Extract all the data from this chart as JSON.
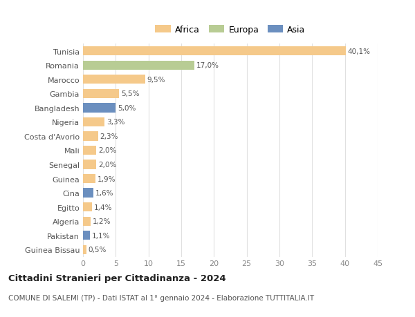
{
  "categories": [
    "Tunisia",
    "Romania",
    "Marocco",
    "Gambia",
    "Bangladesh",
    "Nigeria",
    "Costa d'Avorio",
    "Mali",
    "Senegal",
    "Guinea",
    "Cina",
    "Egitto",
    "Algeria",
    "Pakistan",
    "Guinea Bissau"
  ],
  "values": [
    40.1,
    17.0,
    9.5,
    5.5,
    5.0,
    3.3,
    2.3,
    2.0,
    2.0,
    1.9,
    1.6,
    1.4,
    1.2,
    1.1,
    0.5
  ],
  "labels": [
    "40,1%",
    "17,0%",
    "9,5%",
    "5,5%",
    "5,0%",
    "3,3%",
    "2,3%",
    "2,0%",
    "2,0%",
    "1,9%",
    "1,6%",
    "1,4%",
    "1,2%",
    "1,1%",
    "0,5%"
  ],
  "continents": [
    "Africa",
    "Europa",
    "Africa",
    "Africa",
    "Asia",
    "Africa",
    "Africa",
    "Africa",
    "Africa",
    "Africa",
    "Asia",
    "Africa",
    "Africa",
    "Asia",
    "Africa"
  ],
  "colors": {
    "Africa": "#F5C98A",
    "Europa": "#B8CC94",
    "Asia": "#6B8FBF"
  },
  "legend_labels": [
    "Africa",
    "Europa",
    "Asia"
  ],
  "legend_colors": [
    "#F5C98A",
    "#B8CC94",
    "#6B8FBF"
  ],
  "xlim": [
    0,
    45
  ],
  "xticks": [
    0,
    5,
    10,
    15,
    20,
    25,
    30,
    35,
    40,
    45
  ],
  "title": "Cittadini Stranieri per Cittadinanza - 2024",
  "subtitle": "COMUNE DI SALEMI (TP) - Dati ISTAT al 1° gennaio 2024 - Elaborazione TUTTITALIA.IT",
  "background_color": "#ffffff",
  "grid_color": "#e0e0e0"
}
